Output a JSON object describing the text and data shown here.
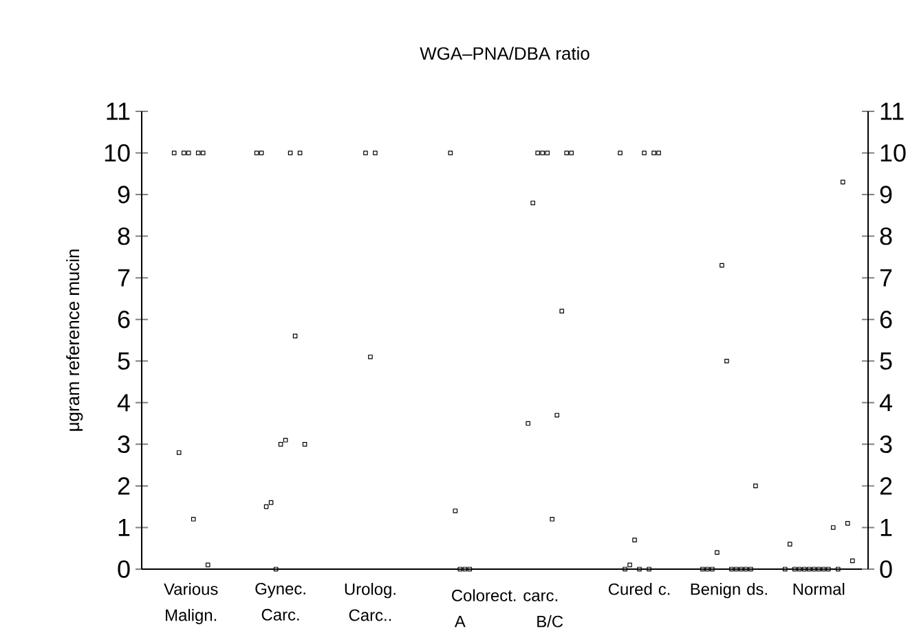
{
  "chart_data": {
    "type": "scatter",
    "title": "WGA–PNA/DBA ratio",
    "ylabel": "μgram reference mucin",
    "marker": "square",
    "ylim": [
      0,
      11
    ],
    "y2lim": [
      0,
      11
    ],
    "yticks": [
      0,
      1,
      2,
      3,
      4,
      5,
      6,
      7,
      8,
      9,
      10,
      11
    ],
    "y2ticks": [
      0,
      1,
      2,
      3,
      4,
      5,
      6,
      7,
      8,
      9,
      10,
      11
    ],
    "categories": [
      "Various Malign.",
      "Gynec. Carc.",
      "Urolog. Carc..",
      "A",
      "B/C",
      "Cured c.",
      "Benign ds.",
      "Normal"
    ],
    "annotations": [
      "Colorect. carc."
    ],
    "series": [
      {
        "color": "#000000",
        "values": [
          10,
          10,
          10,
          10,
          3.5,
          10,
          0,
          0
        ]
      },
      {
        "color": "#000000",
        "values": [
          2.8,
          10,
          5.1,
          1.4,
          8.8,
          0,
          0,
          0.6
        ]
      },
      {
        "color": "#000000",
        "values": [
          10,
          1.5,
          10,
          0,
          10,
          0.1,
          0,
          0
        ]
      },
      {
        "color": "#000000",
        "values": [
          10,
          1.6,
          null,
          0,
          10,
          0.7,
          0.4,
          0
        ]
      },
      {
        "color": "#000000",
        "values": [
          1.2,
          0,
          null,
          0,
          10,
          0,
          7.3,
          0
        ]
      },
      {
        "color": "#000000",
        "values": [
          10,
          3.0,
          null,
          null,
          1.2,
          10,
          5.0,
          0
        ]
      },
      {
        "color": "#000000",
        "values": [
          10,
          3.1,
          null,
          null,
          3.7,
          0,
          0,
          0
        ]
      },
      {
        "color": "#000000",
        "values": [
          0.1,
          10,
          null,
          null,
          6.2,
          10,
          0,
          0
        ]
      },
      {
        "color": "#000000",
        "values": [
          null,
          5.6,
          null,
          null,
          10,
          10,
          0,
          0
        ]
      },
      {
        "color": "#000000",
        "values": [
          null,
          10,
          null,
          null,
          10,
          null,
          0,
          0
        ]
      },
      {
        "color": "#000000",
        "values": [
          null,
          3.0,
          null,
          null,
          null,
          null,
          0,
          1.0
        ]
      },
      {
        "color": "#000000",
        "values": [
          null,
          null,
          null,
          null,
          null,
          null,
          2.0,
          0
        ]
      },
      {
        "color": "#000000",
        "values": [
          null,
          null,
          null,
          null,
          null,
          null,
          null,
          9.3
        ]
      },
      {
        "color": "#000000",
        "values": [
          null,
          null,
          null,
          null,
          null,
          null,
          null,
          1.1
        ]
      },
      {
        "color": "#000000",
        "values": [
          null,
          null,
          null,
          null,
          null,
          null,
          null,
          0.2
        ]
      }
    ]
  }
}
